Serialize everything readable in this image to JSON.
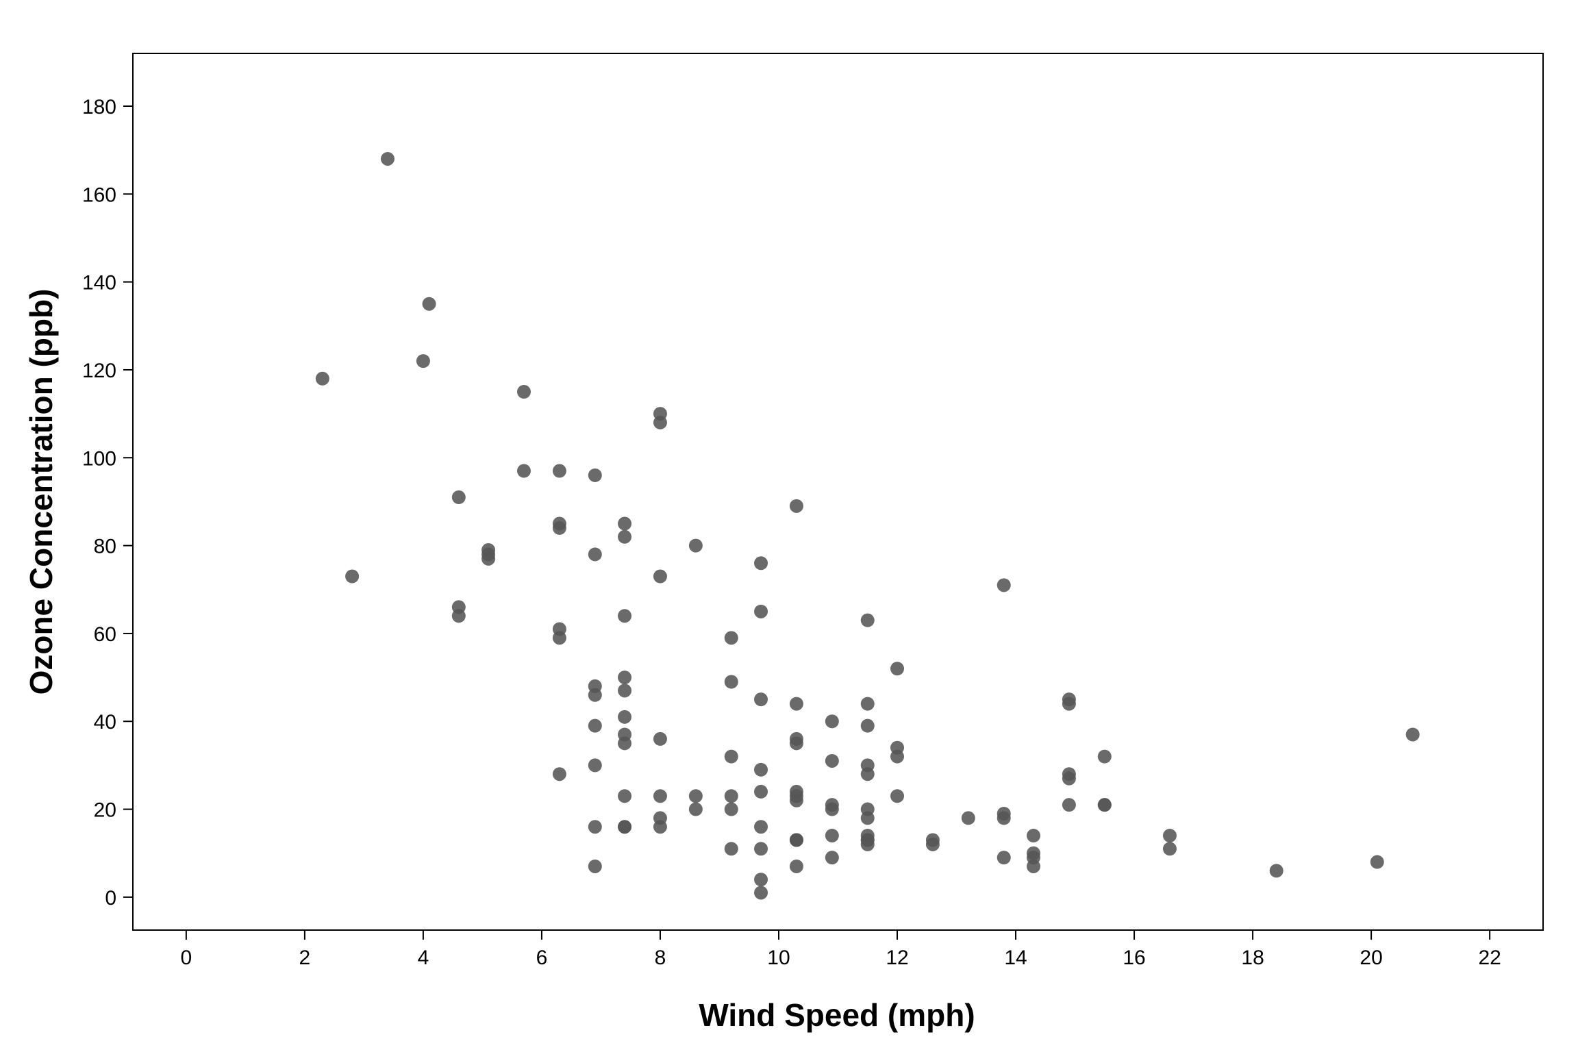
{
  "chart_data": {
    "type": "scatter",
    "title": "",
    "xlabel": "Wind Speed (mph)",
    "ylabel": "Ozone Concentration (ppb)",
    "xlim": [
      -0.9,
      22.9
    ],
    "ylim": [
      -7.5,
      192
    ],
    "xticks": [
      0,
      2,
      4,
      6,
      8,
      10,
      12,
      14,
      16,
      18,
      20,
      22
    ],
    "yticks": [
      0,
      20,
      40,
      60,
      80,
      100,
      120,
      140,
      160,
      180
    ],
    "grid": false,
    "legend": "none",
    "point_color": "#555555",
    "point_opacity": 0.88,
    "axis_color": "#000000",
    "series": [
      {
        "x": [
          2.3,
          2.8,
          3.4,
          4.0,
          4.1,
          4.6,
          4.6,
          4.6,
          5.1,
          5.1,
          5.1,
          5.7,
          5.7,
          6.3,
          6.3,
          6.3,
          6.3,
          6.3,
          6.3,
          6.9,
          6.9,
          6.9,
          6.9,
          6.9,
          6.9,
          6.9,
          6.9,
          7.4,
          7.4,
          7.4,
          7.4,
          7.4,
          7.4,
          7.4,
          7.4,
          7.4,
          7.4,
          7.4,
          8.0,
          8.0,
          8.0,
          8.0,
          8.0,
          8.0,
          8.0,
          8.6,
          8.6,
          8.6,
          9.2,
          9.2,
          9.2,
          9.2,
          9.2,
          9.2,
          9.7,
          9.7,
          9.7,
          9.7,
          9.7,
          9.7,
          9.7,
          9.7,
          9.7,
          10.3,
          10.3,
          10.3,
          10.3,
          10.3,
          10.3,
          10.3,
          10.3,
          10.3,
          10.3,
          10.3,
          10.9,
          10.9,
          10.9,
          10.9,
          10.9,
          10.9,
          11.5,
          11.5,
          11.5,
          11.5,
          11.5,
          11.5,
          11.5,
          11.5,
          11.5,
          11.5,
          11.5,
          12.0,
          12.0,
          12.0,
          12.0,
          12.6,
          12.6,
          13.2,
          13.8,
          13.8,
          13.8,
          13.8,
          14.3,
          14.3,
          14.3,
          14.3,
          14.9,
          14.9,
          14.9,
          14.9,
          14.9,
          15.5,
          15.5,
          15.5,
          16.6,
          16.6,
          18.4,
          20.1,
          20.7
        ],
        "y": [
          118,
          73,
          168,
          122,
          135,
          91,
          66,
          64,
          79,
          78,
          77,
          115,
          97,
          97,
          85,
          84,
          61,
          59,
          28,
          96,
          78,
          48,
          46,
          39,
          30,
          16,
          7,
          85,
          82,
          64,
          50,
          47,
          41,
          37,
          35,
          23,
          16,
          16,
          110,
          108,
          73,
          36,
          23,
          18,
          16,
          80,
          23,
          20,
          59,
          49,
          32,
          23,
          20,
          11,
          76,
          65,
          45,
          29,
          24,
          16,
          11,
          4,
          1,
          89,
          44,
          36,
          35,
          24,
          23,
          22,
          13,
          13,
          13,
          7,
          40,
          31,
          21,
          20,
          14,
          9,
          63,
          44,
          39,
          30,
          28,
          20,
          18,
          14,
          13,
          13,
          12,
          52,
          34,
          32,
          23,
          13,
          12,
          18,
          71,
          19,
          18,
          9,
          14,
          10,
          9,
          7,
          45,
          44,
          28,
          27,
          21,
          32,
          21,
          21,
          14,
          11,
          6,
          8,
          37
        ]
      }
    ]
  }
}
